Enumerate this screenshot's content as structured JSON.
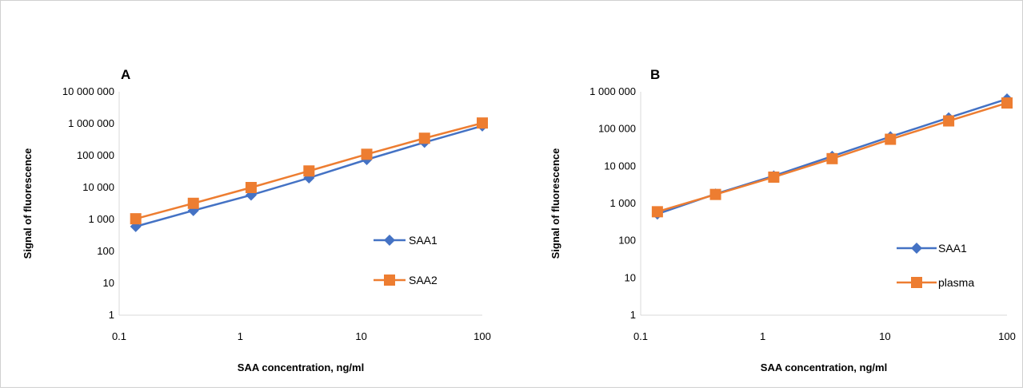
{
  "chart_data": [
    {
      "type": "line",
      "panel_label": "A",
      "title": "",
      "xlabel": "SAA concentration, ng/ml",
      "ylabel": "Signal of fluorescence",
      "x_scale": "log",
      "y_scale": "log",
      "xlim": [
        0.1,
        100
      ],
      "ylim": [
        1,
        10000000
      ],
      "x_ticks": [
        0.1,
        1,
        10,
        100
      ],
      "x_tick_labels": [
        "0.1",
        "1",
        "10",
        "100"
      ],
      "y_ticks": [
        1,
        10,
        100,
        1000,
        10000,
        100000,
        1000000,
        10000000
      ],
      "y_tick_labels": [
        "1",
        "10",
        "100",
        "1 000",
        "10 000",
        "100 000",
        "1 000 000",
        "10 000 000"
      ],
      "x": [
        0.137,
        0.41,
        1.23,
        3.7,
        11.1,
        33.3,
        100
      ],
      "series": [
        {
          "name": "SAA1",
          "color": "#4472c4",
          "marker": "diamond",
          "values": [
            600,
            1900,
            5800,
            20000,
            75000,
            260000,
            850000
          ]
        },
        {
          "name": "SAA2",
          "color": "#ed7d31",
          "marker": "square",
          "values": [
            1050,
            3200,
            10000,
            33000,
            110000,
            350000,
            1050000
          ]
        }
      ],
      "legend_position": "right-inside",
      "grid": false
    },
    {
      "type": "line",
      "panel_label": "B",
      "title": "",
      "xlabel": "SAA concentration, ng/ml",
      "ylabel": "Signal of fluorescence",
      "x_scale": "log",
      "y_scale": "log",
      "xlim": [
        0.1,
        100
      ],
      "ylim": [
        1,
        1000000
      ],
      "x_ticks": [
        0.1,
        1,
        10,
        100
      ],
      "x_tick_labels": [
        "0.1",
        "1",
        "10",
        "100"
      ],
      "y_ticks": [
        1,
        10,
        100,
        1000,
        10000,
        100000,
        1000000
      ],
      "y_tick_labels": [
        "1",
        "10",
        "100",
        "1 000",
        "10 000",
        "100 000",
        "1 000 000"
      ],
      "x": [
        0.137,
        0.41,
        1.23,
        3.7,
        11.1,
        33.3,
        100
      ],
      "series": [
        {
          "name": "SAA1",
          "color": "#4472c4",
          "marker": "diamond",
          "values": [
            520,
            1800,
            5500,
            18500,
            62000,
            200000,
            640000
          ]
        },
        {
          "name": "plasma",
          "color": "#ed7d31",
          "marker": "square",
          "values": [
            600,
            1750,
            5100,
            16000,
            53000,
            165000,
            500000
          ]
        }
      ],
      "legend_position": "right-inside",
      "grid": false
    }
  ]
}
